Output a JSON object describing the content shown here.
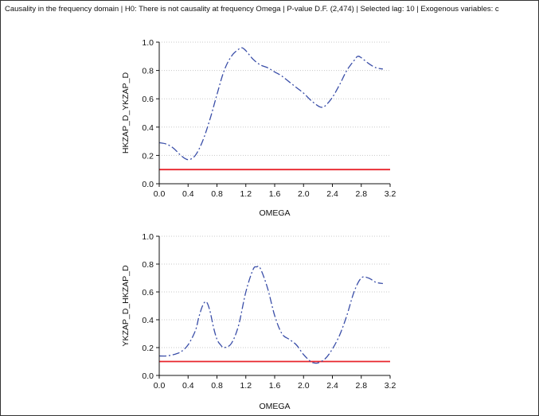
{
  "header": {
    "title": "Causality in the frequency domain | H0: There is not causality at frequency Omega | P-value D.F. (2,474) | Selected lag: 10 | Exogenous variables: c"
  },
  "colors": {
    "series": "#3a4ea8",
    "threshold": "#e8242b",
    "grid": "#c8c8c8",
    "axis": "#111111"
  },
  "chart_data": [
    {
      "type": "line",
      "xlabel": "OMEGA",
      "ylabel": "HKZAP_D_YKZAP_D",
      "xlim": [
        0.0,
        3.2
      ],
      "ylim": [
        0.0,
        1.0
      ],
      "xticks": [
        "0.0",
        "0.4",
        "0.8",
        "1.2",
        "1.6",
        "2.0",
        "2.4",
        "2.8",
        "3.2"
      ],
      "yticks": [
        "0.0",
        "0.2",
        "0.4",
        "0.6",
        "0.8",
        "1.0"
      ],
      "grid": true,
      "threshold": 0.1,
      "series": [
        {
          "x": [
            0.0,
            0.1,
            0.2,
            0.3,
            0.4,
            0.5,
            0.6,
            0.7,
            0.8,
            0.9,
            1.0,
            1.1,
            1.15,
            1.2,
            1.3,
            1.4,
            1.5,
            1.6,
            1.7,
            1.8,
            1.9,
            2.0,
            2.1,
            2.2,
            2.25,
            2.3,
            2.4,
            2.5,
            2.6,
            2.7,
            2.75,
            2.8,
            2.9,
            3.0,
            3.1
          ],
          "y": [
            0.29,
            0.28,
            0.25,
            0.2,
            0.17,
            0.2,
            0.3,
            0.45,
            0.63,
            0.8,
            0.9,
            0.95,
            0.96,
            0.94,
            0.88,
            0.84,
            0.82,
            0.79,
            0.76,
            0.72,
            0.68,
            0.64,
            0.59,
            0.55,
            0.54,
            0.55,
            0.61,
            0.7,
            0.8,
            0.87,
            0.9,
            0.89,
            0.85,
            0.82,
            0.81
          ]
        }
      ]
    },
    {
      "type": "line",
      "xlabel": "OMEGA",
      "ylabel": "YKZAP_D_HKZAP_D",
      "xlim": [
        0.0,
        3.2
      ],
      "ylim": [
        0.0,
        1.0
      ],
      "xticks": [
        "0.0",
        "0.4",
        "0.8",
        "1.2",
        "1.6",
        "2.0",
        "2.4",
        "2.8",
        "3.2"
      ],
      "yticks": [
        "0.0",
        "0.2",
        "0.4",
        "0.6",
        "0.8",
        "1.0"
      ],
      "grid": true,
      "threshold": 0.1,
      "series": [
        {
          "x": [
            0.0,
            0.1,
            0.2,
            0.3,
            0.4,
            0.5,
            0.55,
            0.6,
            0.65,
            0.7,
            0.75,
            0.8,
            0.85,
            0.9,
            1.0,
            1.1,
            1.2,
            1.3,
            1.35,
            1.4,
            1.5,
            1.6,
            1.7,
            1.8,
            1.9,
            2.0,
            2.1,
            2.15,
            2.2,
            2.3,
            2.4,
            2.5,
            2.6,
            2.7,
            2.8,
            2.9,
            3.0,
            3.1
          ],
          "y": [
            0.14,
            0.14,
            0.15,
            0.17,
            0.22,
            0.32,
            0.42,
            0.5,
            0.53,
            0.47,
            0.35,
            0.26,
            0.22,
            0.2,
            0.23,
            0.36,
            0.6,
            0.76,
            0.78,
            0.77,
            0.63,
            0.43,
            0.3,
            0.26,
            0.22,
            0.15,
            0.1,
            0.09,
            0.09,
            0.12,
            0.19,
            0.29,
            0.43,
            0.6,
            0.7,
            0.7,
            0.67,
            0.66
          ]
        }
      ]
    }
  ]
}
